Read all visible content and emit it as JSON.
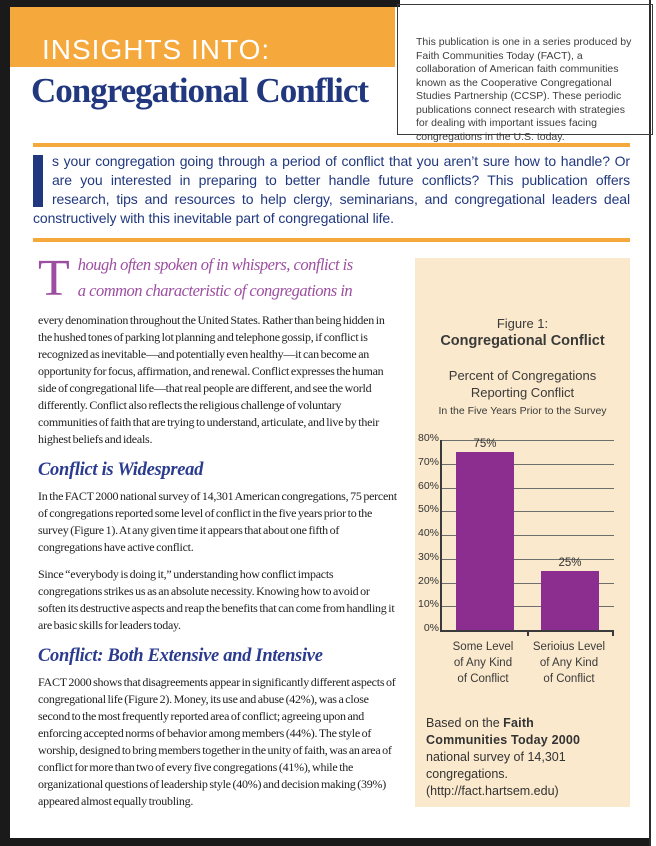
{
  "page": {
    "colors": {
      "orange": "#F5A83B",
      "navy": "#21387F",
      "purple": "#9C4EA0",
      "headblue": "#2B3C8F",
      "cream": "#FAE9CC",
      "barpurple": "#8C2D90"
    },
    "masthead": {
      "kicker": "INSIGHTS INTO:",
      "title": "Congregational Conflict"
    },
    "about_box": {
      "text": "This publication is one in a series produced by Faith Communities Today (FACT), a collaboration of American faith communities known as the Cooperative Congregational Studies Partnership (CCSP). These periodic publications connect research with strategies for dealing with important issues facing congregations in the U.S. today."
    },
    "intro": {
      "drop_cap": "I",
      "text": "s your congregation going through a period of conflict that you aren’t sure how to handle? Or are you interested in preparing to better handle future conflicts? This publication offers research, tips and resources to help clergy, seminarians, and congregational leaders deal constructively with this inevitable part of congregational life."
    },
    "lede": {
      "drop_cap": "T",
      "heading_line1": "hough often spoken of in whispers, conflict is",
      "heading_line2": "a common characteristic of congregations in",
      "body": "every denomination throughout the United States. Rather than being hidden in the hushed tones of parking lot planning and telephone gossip, if conflict is recognized as inevitable—and potentially even healthy—it can become an opportunity for focus, affirmation, and renewal. Conflict expresses the human side of congregational life—that real people are different, and see the world differently. Conflict also reflects the religious challenge of voluntary communities of faith that are trying to understand, articulate, and live by their highest beliefs and ideals."
    },
    "sections": [
      {
        "heading": "Conflict is Widespread",
        "paragraphs": [
          "In the FACT 2000 national survey of 14,301 American congregations, 75 percent of congregations reported some level of conflict in the five years prior to the survey (Figure 1). At any given time it appears that about one fifth of congregations have active conflict.",
          "Since “everybody is doing it,” understanding how conflict impacts congregations strikes us as an absolute necessity. Knowing how to avoid or soften its destructive aspects and reap the benefits that can come from handling it are basic skills for leaders today."
        ]
      },
      {
        "heading": "Conflict: Both Extensive and Intensive",
        "paragraphs": [
          "FACT 2000 shows that disagreements appear in significantly different aspects of congregational life (Figure 2). Money, its use and abuse (42%), was a close second to the most frequently reported area of conflict; agreeing upon and enforcing accepted norms of behavior among members (44%).  The style of worship, designed to bring members together in the unity of faith, was an area of conflict for more than two of every five congregations (41%), while the organizational questions of leadership style (40%) and decision making (39%) appeared almost equally troubling."
        ]
      }
    ],
    "figure": {
      "label": "Figure 1:",
      "title": "Congregational Conflict",
      "subtitle_line1": "Percent of Congregations",
      "subtitle_line2": "Reporting Conflict",
      "subtitle_small": "In the Five Years Prior to the Survey",
      "caption_prefix": "Based on the ",
      "caption_bold": "Faith Communities Today 2000",
      "caption_suffix": " national survey of 14,301 congregations. (http://fact.hartsem.edu)"
    }
  },
  "chart_data": {
    "type": "bar",
    "title": "Figure 1: Congregational Conflict — Percent of Congregations Reporting Conflict in the Five Years Prior to the Survey",
    "categories": [
      [
        "Some Level",
        "of Any Kind",
        "of Conflict"
      ],
      [
        "Serioius Level",
        "of Any Kind",
        "of Conflict"
      ]
    ],
    "values": [
      75,
      25
    ],
    "value_labels": [
      "75%",
      "25%"
    ],
    "ylim": [
      0,
      80
    ],
    "yticks": [
      "0%",
      "10%",
      "20%",
      "30%",
      "40%",
      "50%",
      "60%",
      "70%",
      "80%"
    ],
    "grid": true,
    "legend": false,
    "bar_color": "#8C2D90"
  }
}
